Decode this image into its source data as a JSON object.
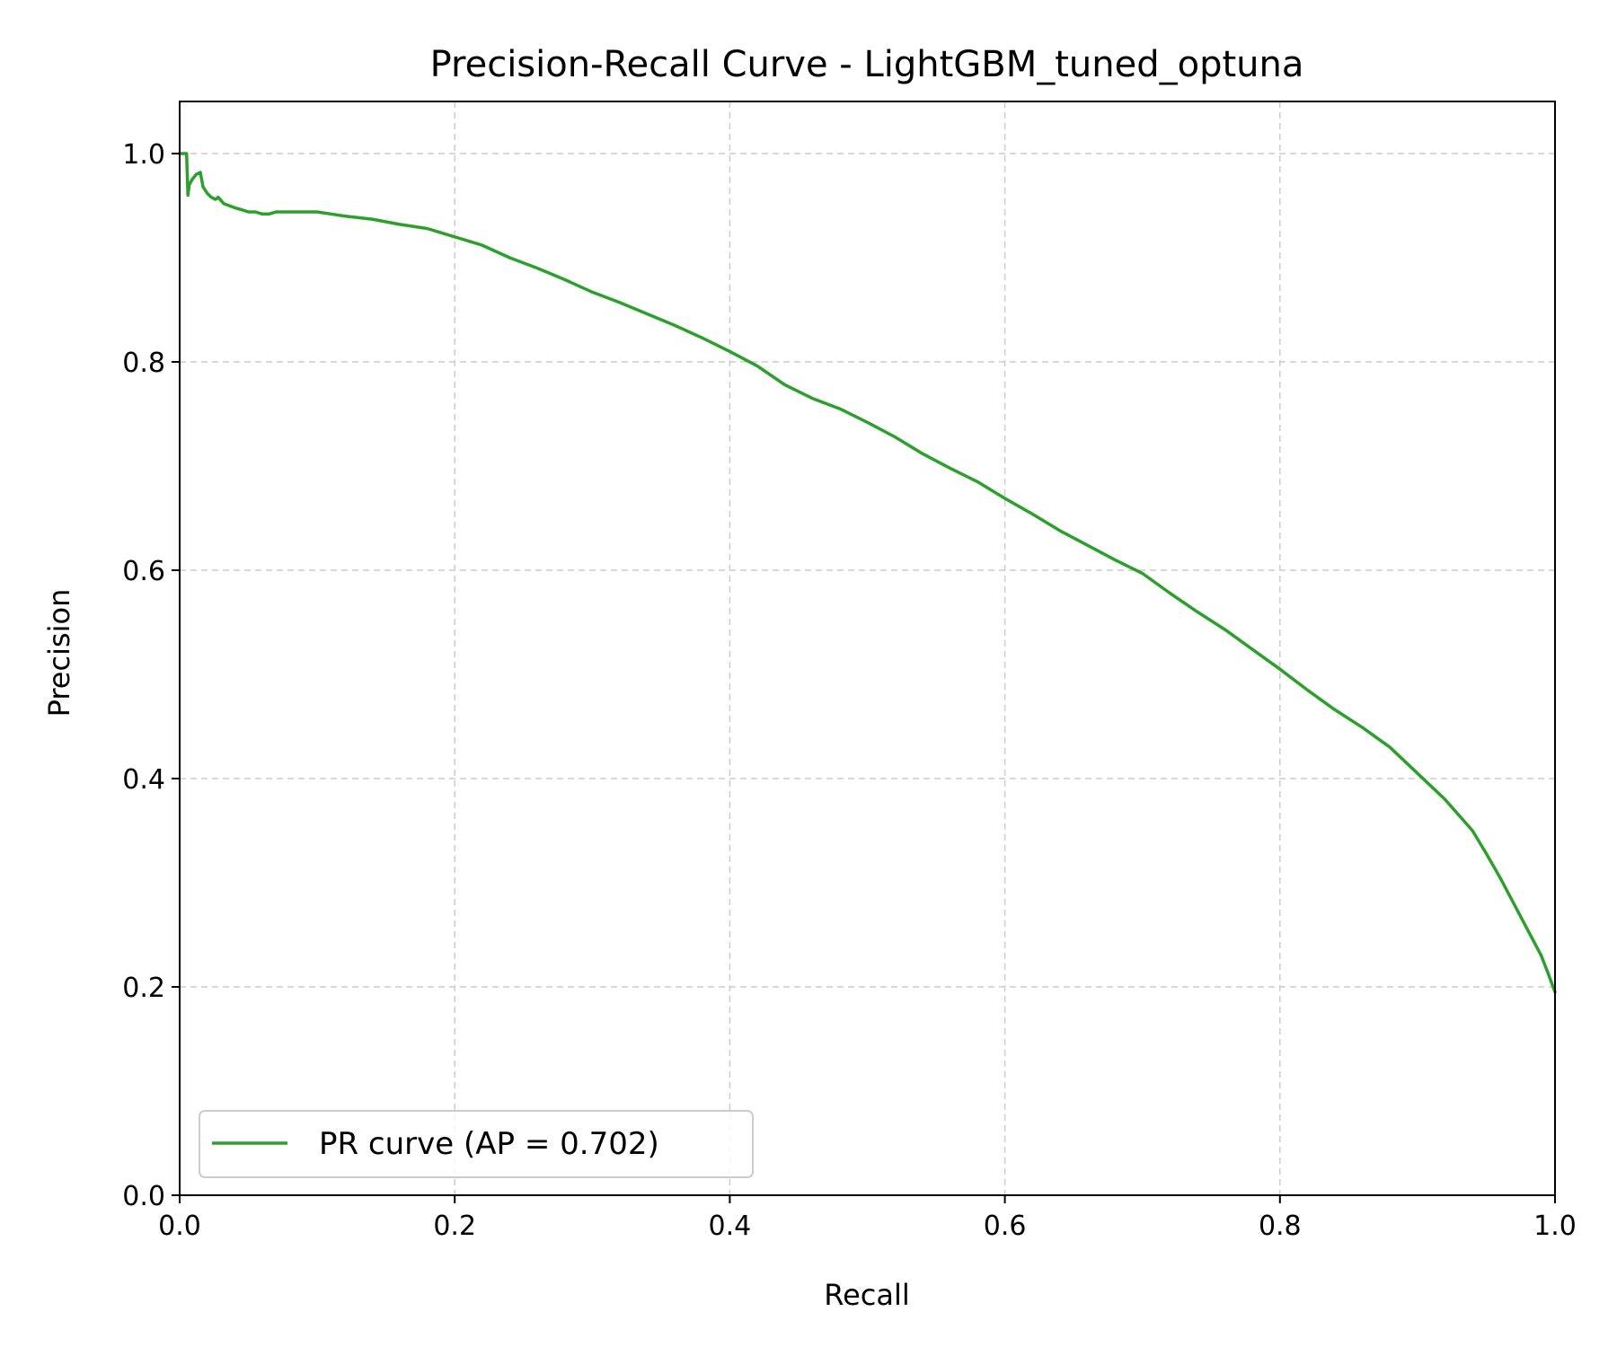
{
  "chart_data": {
    "type": "line",
    "title": "Precision-Recall Curve - LightGBM_tuned_optuna",
    "xlabel": "Recall",
    "ylabel": "Precision",
    "xlim": [
      0.0,
      1.0
    ],
    "ylim": [
      0.0,
      1.05
    ],
    "xticks": [
      "0.0",
      "0.2",
      "0.4",
      "0.6",
      "0.8",
      "1.0"
    ],
    "yticks": [
      "0.0",
      "0.2",
      "0.4",
      "0.6",
      "0.8",
      "1.0"
    ],
    "grid": true,
    "legend_position": "lower-left",
    "series": [
      {
        "name": "PR curve (AP = 0.702)",
        "color": "#2ca02c",
        "x": [
          0.0,
          0.005,
          0.006,
          0.007,
          0.009,
          0.012,
          0.015,
          0.017,
          0.02,
          0.023,
          0.026,
          0.028,
          0.032,
          0.036,
          0.04,
          0.045,
          0.05,
          0.055,
          0.06,
          0.065,
          0.07,
          0.08,
          0.09,
          0.1,
          0.11,
          0.12,
          0.14,
          0.16,
          0.18,
          0.2,
          0.22,
          0.24,
          0.26,
          0.28,
          0.3,
          0.32,
          0.34,
          0.36,
          0.38,
          0.4,
          0.42,
          0.44,
          0.46,
          0.48,
          0.5,
          0.52,
          0.54,
          0.56,
          0.58,
          0.6,
          0.62,
          0.64,
          0.66,
          0.68,
          0.7,
          0.72,
          0.74,
          0.76,
          0.78,
          0.8,
          0.82,
          0.84,
          0.86,
          0.88,
          0.9,
          0.92,
          0.94,
          0.95,
          0.96,
          0.97,
          0.98,
          0.99,
          0.995,
          1.0
        ],
        "y": [
          1.0,
          1.0,
          0.96,
          0.97,
          0.975,
          0.98,
          0.982,
          0.968,
          0.962,
          0.958,
          0.956,
          0.958,
          0.952,
          0.95,
          0.948,
          0.946,
          0.944,
          0.944,
          0.942,
          0.942,
          0.944,
          0.944,
          0.944,
          0.944,
          0.942,
          0.94,
          0.937,
          0.932,
          0.928,
          0.92,
          0.912,
          0.9,
          0.89,
          0.879,
          0.867,
          0.857,
          0.846,
          0.835,
          0.823,
          0.81,
          0.796,
          0.778,
          0.765,
          0.755,
          0.742,
          0.728,
          0.712,
          0.698,
          0.685,
          0.669,
          0.654,
          0.638,
          0.624,
          0.61,
          0.597,
          0.578,
          0.56,
          0.543,
          0.524,
          0.505,
          0.485,
          0.466,
          0.449,
          0.43,
          0.405,
          0.38,
          0.35,
          0.328,
          0.305,
          0.28,
          0.255,
          0.23,
          0.213,
          0.195
        ]
      }
    ]
  }
}
